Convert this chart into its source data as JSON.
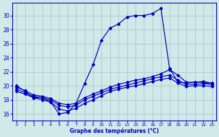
{
  "title": "Graphe des températures (°C)",
  "background_color": "#d0eaea",
  "grid_color": "#a8c8c8",
  "line_color": "#0000bb",
  "xlim": [
    -0.5,
    23.5
  ],
  "ylim": [
    15.0,
    31.8
  ],
  "yticks": [
    16,
    18,
    20,
    22,
    24,
    26,
    28,
    30
  ],
  "xticks": [
    0,
    1,
    2,
    3,
    4,
    5,
    6,
    7,
    8,
    9,
    10,
    11,
    12,
    13,
    14,
    15,
    16,
    17,
    18,
    19,
    20,
    21,
    22,
    23
  ],
  "line1_x": [
    0,
    1,
    2,
    3,
    4,
    5,
    6,
    7,
    8,
    9,
    10,
    11,
    12,
    13,
    14,
    15,
    16,
    17,
    18,
    19,
    20,
    21,
    22,
    23
  ],
  "line1_y": [
    20.0,
    19.2,
    18.3,
    18.3,
    17.7,
    16.0,
    16.2,
    17.5,
    20.3,
    23.0,
    26.5,
    28.2,
    28.8,
    29.8,
    30.0,
    30.0,
    30.3,
    31.0,
    22.5,
    20.5,
    20.4,
    20.5,
    20.5,
    20.2
  ],
  "line2_x": [
    0,
    1,
    2,
    3,
    4,
    5,
    6,
    7,
    8,
    9,
    10,
    11,
    12,
    13,
    14,
    15,
    16,
    17,
    18,
    19,
    20,
    21,
    22,
    23
  ],
  "line2_y": [
    19.8,
    19.3,
    18.7,
    18.5,
    18.2,
    17.5,
    17.3,
    17.5,
    18.3,
    18.8,
    19.3,
    19.8,
    20.2,
    20.5,
    20.8,
    21.0,
    21.3,
    21.7,
    22.3,
    21.5,
    20.5,
    20.5,
    20.6,
    20.4
  ],
  "line3_x": [
    0,
    1,
    2,
    3,
    4,
    5,
    6,
    7,
    8,
    9,
    10,
    11,
    12,
    13,
    14,
    15,
    16,
    17,
    18,
    19,
    20,
    21,
    22,
    23
  ],
  "line3_y": [
    19.5,
    19.0,
    18.5,
    18.3,
    18.0,
    17.2,
    17.0,
    17.2,
    18.0,
    18.5,
    19.0,
    19.5,
    19.8,
    20.1,
    20.4,
    20.7,
    21.0,
    21.3,
    21.5,
    20.8,
    20.2,
    20.2,
    20.3,
    20.2
  ],
  "line4_x": [
    0,
    1,
    2,
    3,
    4,
    5,
    6,
    7,
    8,
    9,
    10,
    11,
    12,
    13,
    14,
    15,
    16,
    17,
    18,
    19,
    20,
    21,
    22,
    23
  ],
  "line4_y": [
    19.2,
    18.8,
    18.3,
    18.0,
    17.7,
    16.7,
    16.4,
    16.8,
    17.5,
    18.0,
    18.6,
    19.2,
    19.5,
    19.8,
    20.0,
    20.3,
    20.6,
    20.9,
    21.1,
    20.4,
    19.9,
    20.0,
    20.0,
    19.9
  ]
}
